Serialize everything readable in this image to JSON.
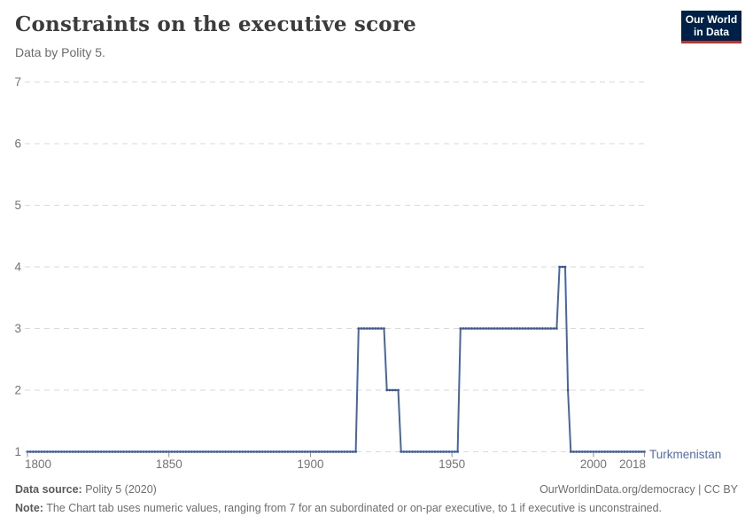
{
  "header": {
    "title": "Constraints on the executive score",
    "subtitle": "Data by Polity 5."
  },
  "logo": {
    "line1": "Our World",
    "line2": "in Data",
    "bg_color": "#002147",
    "bar_color": "#c0322b"
  },
  "chart_data": {
    "type": "line",
    "title": "Constraints on the executive score",
    "entity": "Turkmenistan",
    "x_range": [
      1800,
      2018
    ],
    "y_range": [
      1,
      7
    ],
    "grid": true,
    "legend_position": "end-of-line-label",
    "y_ticks": [
      1,
      2,
      3,
      4,
      5,
      6,
      7
    ],
    "x_ticks": [
      1800,
      1850,
      1900,
      1950,
      2000,
      2018
    ],
    "colors": {
      "grid": "#dadada",
      "tick": "#8f8f8f",
      "tick_text": "#737373"
    },
    "series": [
      {
        "name": "Turkmenistan",
        "color": "#4666a4",
        "marker_color": "#3a589b",
        "label_color": "#506eb4",
        "segments": [
          {
            "from": 1800,
            "to": 1916,
            "value": 1
          },
          {
            "from": 1917,
            "to": 1926,
            "value": 3
          },
          {
            "from": 1927,
            "to": 1931,
            "value": 2
          },
          {
            "from": 1932,
            "to": 1952,
            "value": 1
          },
          {
            "from": 1953,
            "to": 1987,
            "value": 3
          },
          {
            "from": 1988,
            "to": 1990,
            "value": 4
          },
          {
            "from": 1991,
            "to": 1991,
            "value": 2
          },
          {
            "from": 1992,
            "to": 2018,
            "value": 1
          }
        ]
      }
    ]
  },
  "footer": {
    "source_label": "Data source:",
    "source_value": "Polity 5 (2020)",
    "link": "OurWorldinData.org/democracy | CC BY",
    "note_label": "Note:",
    "note_text": "The Chart tab uses numeric values, ranging from 7 for an subordinated or on-par executive, to 1 if executive is unconstrained."
  }
}
